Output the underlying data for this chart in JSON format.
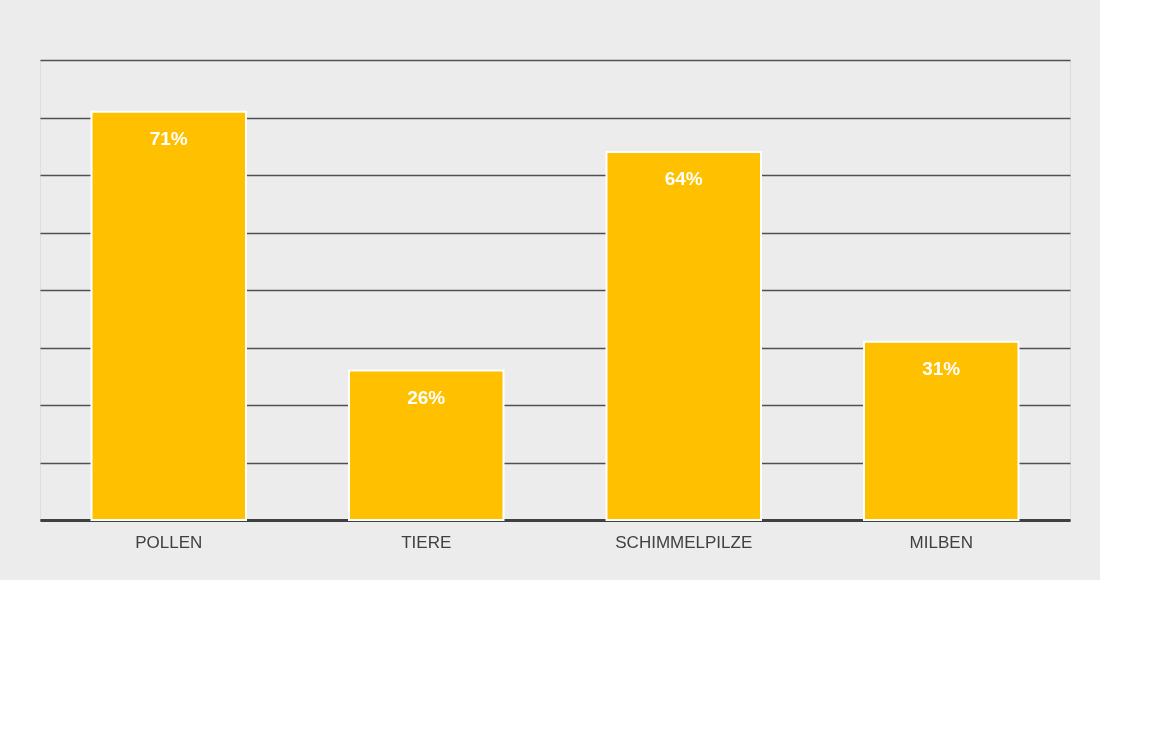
{
  "chart_data": {
    "type": "bar",
    "categories": [
      "POLLEN",
      "TIERE",
      "SCHIMMELPILZE",
      "MILBEN"
    ],
    "values": [
      71,
      26,
      64,
      31
    ],
    "color": "#ffc000",
    "value_labels": [
      "71%",
      "26%",
      "64%",
      "31%"
    ],
    "ylim": [
      0,
      80
    ],
    "yticks": [
      {
        "value": 0,
        "label": null
      },
      {
        "value": 10,
        "label": null
      },
      {
        "value": 20,
        "label": null
      },
      {
        "value": 30,
        "label": null
      },
      {
        "value": 40,
        "label": null
      },
      {
        "value": 50,
        "label": null
      },
      {
        "value": 60,
        "label": null
      },
      {
        "value": 70,
        "label": null
      },
      {
        "value": 80,
        "label": null
      }
    ],
    "grid": "y",
    "tick_labels": "x"
  }
}
